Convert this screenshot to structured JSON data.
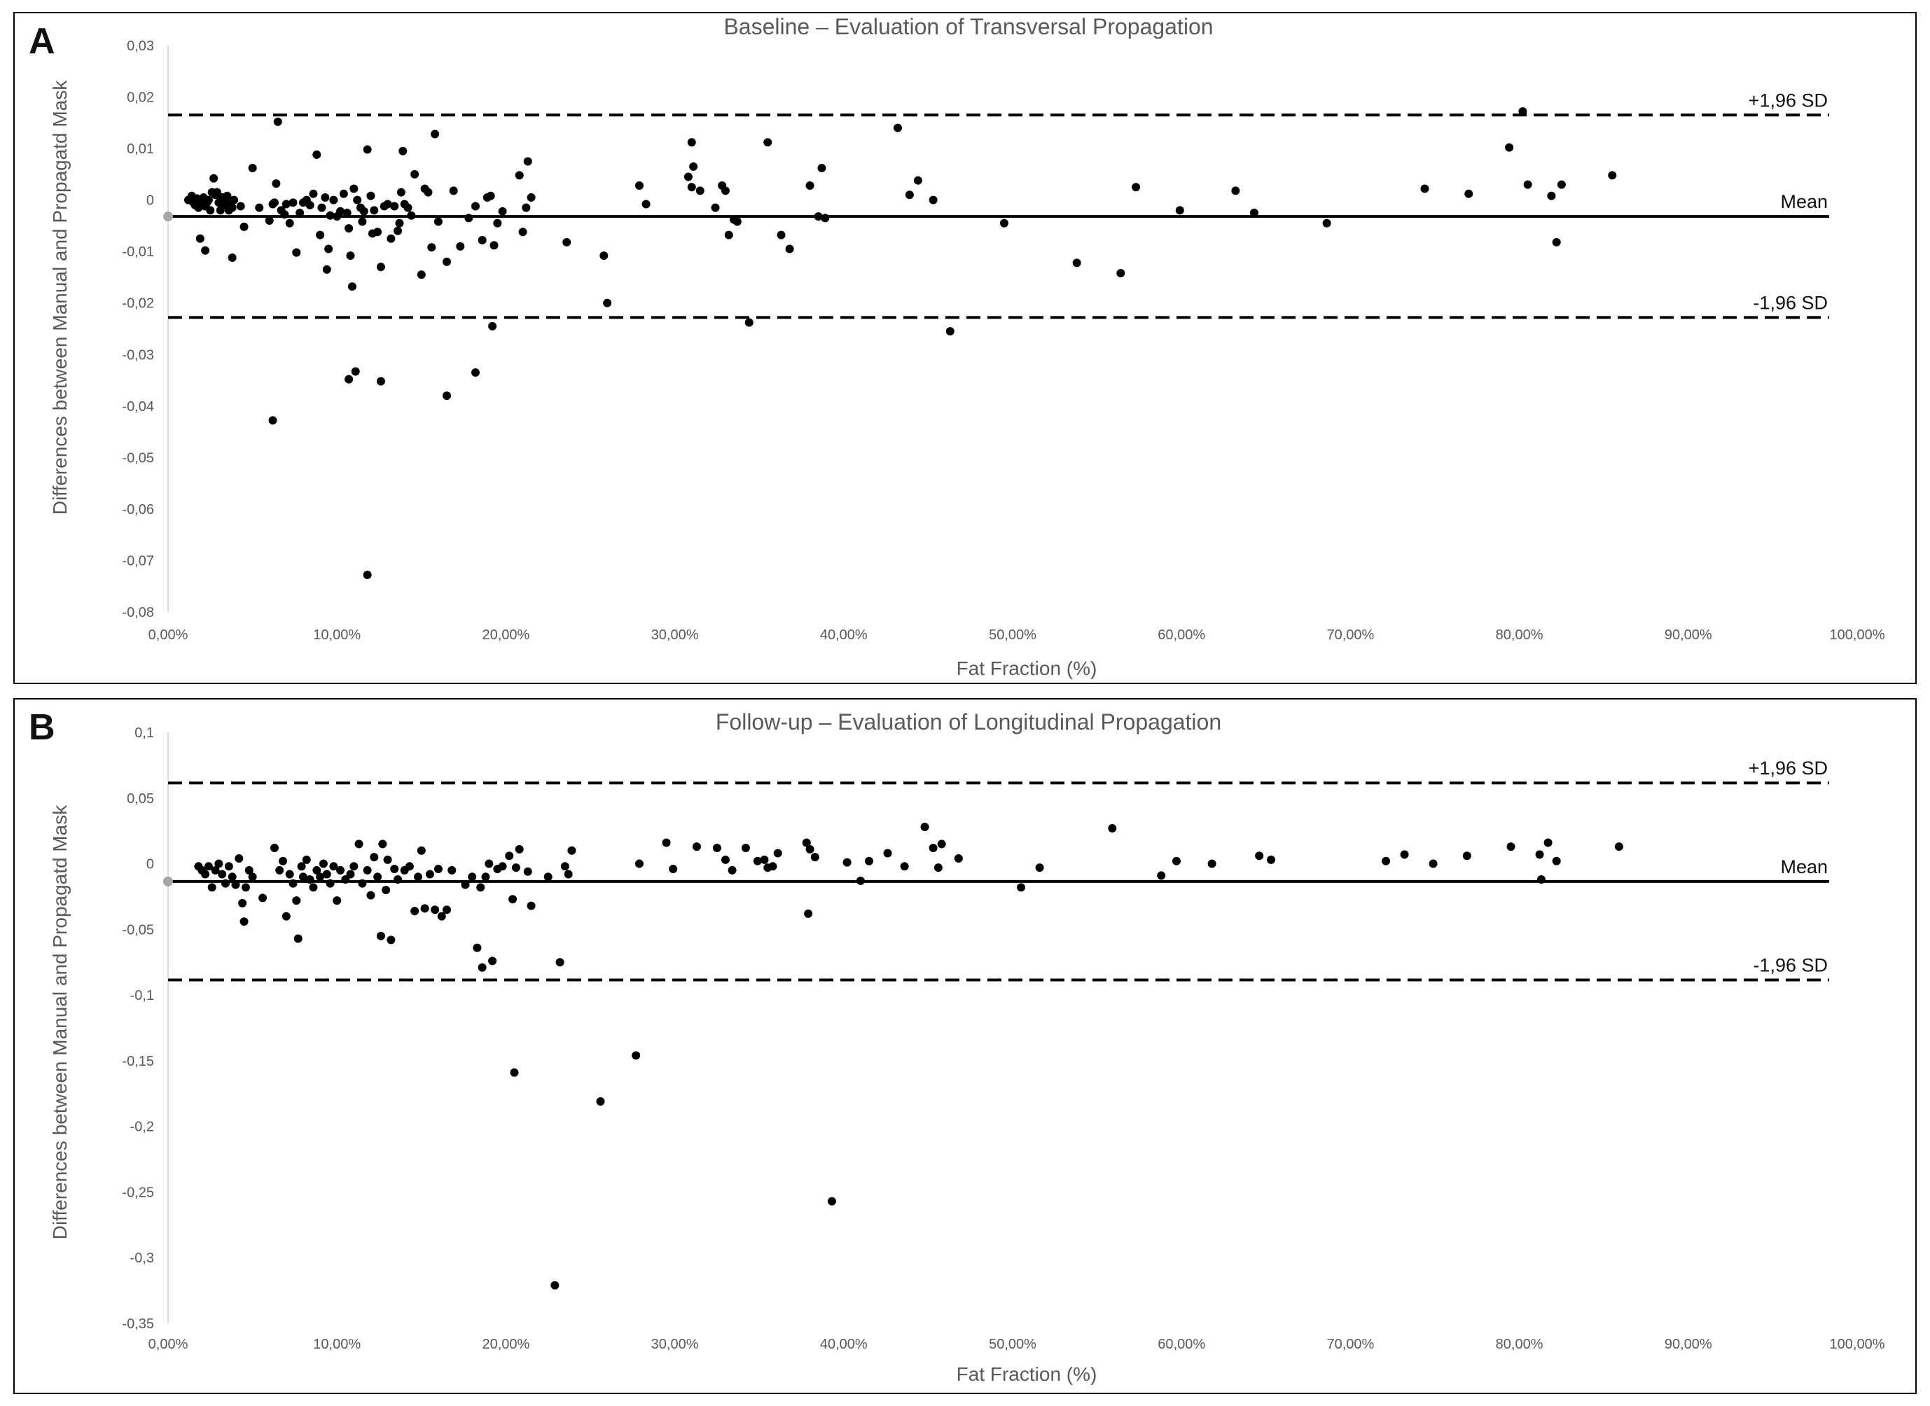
{
  "panels": [
    {
      "letter": "A"
    },
    {
      "letter": "B"
    }
  ],
  "chart_data": [
    {
      "type": "scatter",
      "title": "Baseline – Evaluation of Transversal Propagation",
      "xlabel": "Fat Fraction (%)",
      "ylabel": "Differences between Manual and Propagatd Mask",
      "xlim": [
        0,
        100
      ],
      "ylim": [
        -0.08,
        0.03
      ],
      "x_ticks": [
        "0,00%",
        "10,00%",
        "20,00%",
        "30,00%",
        "40,00%",
        "50,00%",
        "60,00%",
        "70,00%",
        "80,00%",
        "90,00%",
        "100,00%"
      ],
      "x_tick_values": [
        0,
        10,
        20,
        30,
        40,
        50,
        60,
        70,
        80,
        90,
        100
      ],
      "y_ticks": [
        "0,03",
        "0,02",
        "0,01",
        "0",
        "-0,01",
        "-0,02",
        "-0,03",
        "-0,04",
        "-0,05",
        "-0,06",
        "-0,07",
        "-0,08"
      ],
      "y_tick_values": [
        0.03,
        0.02,
        0.01,
        0,
        -0.01,
        -0.02,
        -0.03,
        -0.04,
        -0.05,
        -0.06,
        -0.07,
        -0.08
      ],
      "grid": false,
      "mean": -0.0032,
      "upper_loa": 0.0165,
      "lower_loa": -0.0228,
      "mean_label": "Mean",
      "upper_label": "+1,96 SD",
      "lower_label": "-1,96 SD",
      "mean_marker_color": "#a6a6a6",
      "point_color": "#000000",
      "points": [
        [
          1.2,
          0.0
        ],
        [
          1.4,
          0.0008
        ],
        [
          1.5,
          -0.0005
        ],
        [
          1.6,
          -0.001
        ],
        [
          1.7,
          0.0003
        ],
        [
          1.8,
          -0.0015
        ],
        [
          1.9,
          0.0
        ],
        [
          2.0,
          -0.0008
        ],
        [
          2.1,
          0.0005
        ],
        [
          2.2,
          -0.0012
        ],
        [
          2.3,
          -0.0005
        ],
        [
          2.4,
          0.0
        ],
        [
          2.5,
          -0.002
        ],
        [
          2.6,
          0.0015
        ],
        [
          2.7,
          0.0042
        ],
        [
          2.8,
          0.001
        ],
        [
          2.9,
          0.0015
        ],
        [
          3.0,
          -0.0005
        ],
        [
          3.1,
          -0.002
        ],
        [
          3.2,
          0.0005
        ],
        [
          3.3,
          -0.001
        ],
        [
          3.4,
          0.0
        ],
        [
          3.5,
          0.0008
        ],
        [
          3.6,
          -0.002
        ],
        [
          3.7,
          -0.001
        ],
        [
          3.8,
          -0.0015
        ],
        [
          3.9,
          0.0
        ],
        [
          1.9,
          -0.0075
        ],
        [
          2.2,
          -0.0098
        ],
        [
          3.8,
          -0.0112
        ],
        [
          4.3,
          -0.0012
        ],
        [
          4.5,
          -0.0052
        ],
        [
          5.0,
          0.0062
        ],
        [
          5.4,
          -0.0015
        ],
        [
          6.0,
          -0.004
        ],
        [
          6.2,
          -0.0008
        ],
        [
          6.3,
          -0.0005
        ],
        [
          6.4,
          0.0032
        ],
        [
          6.5,
          0.0152
        ],
        [
          6.7,
          -0.002
        ],
        [
          6.9,
          -0.0028
        ],
        [
          7.0,
          -0.0008
        ],
        [
          7.2,
          -0.0045
        ],
        [
          7.4,
          -0.0005
        ],
        [
          7.6,
          -0.0102
        ],
        [
          7.8,
          -0.0025
        ],
        [
          8.0,
          -0.0005
        ],
        [
          8.2,
          0.0
        ],
        [
          8.4,
          -0.001
        ],
        [
          8.6,
          0.0012
        ],
        [
          8.8,
          0.0088
        ],
        [
          9.0,
          -0.0068
        ],
        [
          9.1,
          -0.0015
        ],
        [
          9.3,
          0.0005
        ],
        [
          9.4,
          -0.0135
        ],
        [
          9.5,
          -0.0095
        ],
        [
          9.6,
          -0.003
        ],
        [
          9.8,
          0.0
        ],
        [
          10.0,
          -0.0032
        ],
        [
          10.2,
          -0.0022
        ],
        [
          10.4,
          0.0012
        ],
        [
          10.6,
          -0.0025
        ],
        [
          10.7,
          -0.0055
        ],
        [
          10.8,
          -0.0108
        ],
        [
          10.9,
          -0.0168
        ],
        [
          11.0,
          0.0022
        ],
        [
          11.2,
          0.0
        ],
        [
          11.4,
          -0.0015
        ],
        [
          11.5,
          -0.0042
        ],
        [
          11.6,
          -0.0022
        ],
        [
          11.8,
          0.0098
        ],
        [
          12.0,
          0.0008
        ],
        [
          12.1,
          -0.0065
        ],
        [
          12.2,
          -0.002
        ],
        [
          12.4,
          -0.0062
        ],
        [
          12.6,
          -0.013
        ],
        [
          12.8,
          -0.0012
        ],
        [
          13.0,
          -0.0008
        ],
        [
          13.2,
          -0.0075
        ],
        [
          13.4,
          -0.0012
        ],
        [
          13.6,
          -0.006
        ],
        [
          13.7,
          -0.0045
        ],
        [
          13.8,
          0.0015
        ],
        [
          13.9,
          0.0095
        ],
        [
          14.0,
          -0.0008
        ],
        [
          14.2,
          -0.0015
        ],
        [
          14.4,
          -0.003
        ],
        [
          14.6,
          0.005
        ],
        [
          15.0,
          -0.0145
        ],
        [
          15.2,
          0.0022
        ],
        [
          15.4,
          0.0015
        ],
        [
          15.6,
          -0.0092
        ],
        [
          15.8,
          0.0128
        ],
        [
          16.0,
          -0.0042
        ],
        [
          16.5,
          -0.012
        ],
        [
          16.9,
          0.0018
        ],
        [
          17.3,
          -0.009
        ],
        [
          17.8,
          -0.0035
        ],
        [
          18.2,
          -0.0012
        ],
        [
          18.6,
          -0.0078
        ],
        [
          18.9,
          0.0005
        ],
        [
          19.1,
          0.0008
        ],
        [
          19.3,
          -0.0088
        ],
        [
          19.5,
          -0.0045
        ],
        [
          19.8,
          -0.0022
        ],
        [
          20.8,
          0.0048
        ],
        [
          21.0,
          -0.0062
        ],
        [
          21.2,
          -0.0015
        ],
        [
          21.3,
          0.0075
        ],
        [
          21.5,
          0.0005
        ],
        [
          6.2,
          -0.0428
        ],
        [
          10.7,
          -0.0348
        ],
        [
          11.1,
          -0.0333
        ],
        [
          12.6,
          -0.0352
        ],
        [
          16.5,
          -0.038
        ],
        [
          18.2,
          -0.0335
        ],
        [
          11.8,
          -0.0728
        ],
        [
          19.2,
          -0.0245
        ],
        [
          23.6,
          -0.0082
        ],
        [
          25.8,
          -0.0108
        ],
        [
          26.0,
          -0.02
        ],
        [
          27.9,
          0.0028
        ],
        [
          28.3,
          -0.0008
        ],
        [
          30.8,
          0.0045
        ],
        [
          31.0,
          0.0112
        ],
        [
          31.1,
          0.0065
        ],
        [
          31.0,
          0.0025
        ],
        [
          31.5,
          0.0018
        ],
        [
          32.4,
          -0.0015
        ],
        [
          32.8,
          0.0028
        ],
        [
          33.0,
          0.0018
        ],
        [
          33.2,
          -0.0068
        ],
        [
          33.5,
          -0.0038
        ],
        [
          33.7,
          -0.0042
        ],
        [
          34.4,
          -0.0238
        ],
        [
          35.5,
          0.0112
        ],
        [
          36.3,
          -0.0068
        ],
        [
          36.8,
          -0.0095
        ],
        [
          38.0,
          0.0028
        ],
        [
          38.5,
          -0.0032
        ],
        [
          38.7,
          0.0062
        ],
        [
          38.9,
          -0.0035
        ],
        [
          43.2,
          0.014
        ],
        [
          43.9,
          0.001
        ],
        [
          44.4,
          0.0038
        ],
        [
          45.3,
          0.0
        ],
        [
          46.3,
          -0.0255
        ],
        [
          49.5,
          -0.0045
        ],
        [
          53.8,
          -0.0122
        ],
        [
          56.4,
          -0.0142
        ],
        [
          57.3,
          0.0025
        ],
        [
          59.9,
          -0.002
        ],
        [
          63.2,
          0.0018
        ],
        [
          64.3,
          -0.0025
        ],
        [
          68.6,
          -0.0045
        ],
        [
          74.4,
          0.0022
        ],
        [
          77.0,
          0.0012
        ],
        [
          79.4,
          0.0102
        ],
        [
          80.2,
          0.0172
        ],
        [
          80.5,
          0.003
        ],
        [
          81.9,
          0.0008
        ],
        [
          82.2,
          -0.0082
        ],
        [
          82.5,
          0.003
        ],
        [
          85.5,
          0.0048
        ]
      ]
    },
    {
      "type": "scatter",
      "title": "Follow-up – Evaluation of Longitudinal Propagation",
      "xlabel": "Fat Fraction (%)",
      "ylabel": "Differences between Manual and Propagatd Mask",
      "xlim": [
        0,
        100
      ],
      "ylim": [
        -0.35,
        0.1
      ],
      "x_ticks": [
        "0,00%",
        "10,00%",
        "20,00%",
        "30,00%",
        "40,00%",
        "50,00%",
        "60,00%",
        "70,00%",
        "80,00%",
        "90,00%",
        "100,00%"
      ],
      "x_tick_values": [
        0,
        10,
        20,
        30,
        40,
        50,
        60,
        70,
        80,
        90,
        100
      ],
      "y_ticks": [
        "0,1",
        "0,05",
        "0",
        "-0,05",
        "-0,1",
        "-0,15",
        "-0,2",
        "-0,25",
        "-0,3",
        "-0,35"
      ],
      "y_tick_values": [
        0.1,
        0.05,
        0,
        -0.05,
        -0.1,
        -0.15,
        -0.2,
        -0.25,
        -0.3,
        -0.35
      ],
      "grid": false,
      "mean": -0.0135,
      "upper_loa": 0.0615,
      "lower_loa": -0.0885,
      "mean_label": "Mean",
      "upper_label": "+1,96 SD",
      "lower_label": "-1,96 SD",
      "mean_marker_color": "#a6a6a6",
      "point_color": "#000000",
      "points": [
        [
          1.8,
          -0.002
        ],
        [
          2.0,
          -0.005
        ],
        [
          2.2,
          -0.008
        ],
        [
          2.4,
          -0.002
        ],
        [
          2.6,
          -0.018
        ],
        [
          2.8,
          -0.005
        ],
        [
          3.0,
          0.0
        ],
        [
          3.2,
          -0.008
        ],
        [
          3.4,
          -0.015
        ],
        [
          3.6,
          -0.002
        ],
        [
          3.8,
          -0.01
        ],
        [
          4.0,
          -0.016
        ],
        [
          4.2,
          0.004
        ],
        [
          4.4,
          -0.03
        ],
        [
          4.5,
          -0.044
        ],
        [
          4.6,
          -0.018
        ],
        [
          4.8,
          -0.005
        ],
        [
          5.0,
          -0.01
        ],
        [
          5.6,
          -0.026
        ],
        [
          6.3,
          0.012
        ],
        [
          6.6,
          -0.005
        ],
        [
          6.8,
          0.002
        ],
        [
          7.0,
          -0.04
        ],
        [
          7.2,
          -0.008
        ],
        [
          7.4,
          -0.015
        ],
        [
          7.6,
          -0.028
        ],
        [
          7.7,
          -0.057
        ],
        [
          7.9,
          -0.002
        ],
        [
          8.0,
          -0.01
        ],
        [
          8.2,
          0.003
        ],
        [
          8.4,
          -0.012
        ],
        [
          8.6,
          -0.018
        ],
        [
          8.8,
          -0.005
        ],
        [
          9.0,
          -0.01
        ],
        [
          9.2,
          0.0
        ],
        [
          9.4,
          -0.008
        ],
        [
          9.6,
          -0.015
        ],
        [
          9.8,
          -0.002
        ],
        [
          10.0,
          -0.028
        ],
        [
          10.2,
          -0.005
        ],
        [
          10.5,
          -0.012
        ],
        [
          10.8,
          -0.008
        ],
        [
          11.0,
          -0.002
        ],
        [
          11.3,
          0.015
        ],
        [
          11.5,
          -0.015
        ],
        [
          11.8,
          -0.005
        ],
        [
          12.0,
          -0.024
        ],
        [
          12.2,
          0.005
        ],
        [
          12.4,
          -0.01
        ],
        [
          12.6,
          -0.055
        ],
        [
          12.7,
          0.015
        ],
        [
          12.9,
          -0.02
        ],
        [
          13.0,
          0.003
        ],
        [
          13.2,
          -0.058
        ],
        [
          13.4,
          -0.004
        ],
        [
          13.6,
          -0.012
        ],
        [
          14.0,
          -0.005
        ],
        [
          14.3,
          -0.002
        ],
        [
          14.6,
          -0.036
        ],
        [
          14.8,
          -0.01
        ],
        [
          15.0,
          0.01
        ],
        [
          15.2,
          -0.034
        ],
        [
          15.5,
          -0.008
        ],
        [
          15.8,
          -0.035
        ],
        [
          16.0,
          -0.004
        ],
        [
          16.2,
          -0.04
        ],
        [
          16.5,
          -0.035
        ],
        [
          16.8,
          -0.005
        ],
        [
          17.6,
          -0.016
        ],
        [
          18.0,
          -0.01
        ],
        [
          18.3,
          -0.064
        ],
        [
          18.5,
          -0.018
        ],
        [
          18.6,
          -0.079
        ],
        [
          18.8,
          -0.01
        ],
        [
          19.0,
          0.0
        ],
        [
          19.2,
          -0.074
        ],
        [
          19.5,
          -0.004
        ],
        [
          19.8,
          -0.002
        ],
        [
          20.2,
          0.006
        ],
        [
          20.4,
          -0.027
        ],
        [
          20.6,
          -0.003
        ],
        [
          20.8,
          0.011
        ],
        [
          21.5,
          -0.032
        ],
        [
          21.3,
          -0.006
        ],
        [
          22.5,
          -0.01
        ],
        [
          23.2,
          -0.075
        ],
        [
          23.5,
          -0.002
        ],
        [
          23.7,
          -0.008
        ],
        [
          23.9,
          0.01
        ],
        [
          20.5,
          -0.159
        ],
        [
          22.9,
          -0.321
        ],
        [
          25.6,
          -0.181
        ],
        [
          27.7,
          -0.146
        ],
        [
          27.9,
          0.0
        ],
        [
          29.5,
          0.016
        ],
        [
          29.9,
          -0.004
        ],
        [
          31.3,
          0.013
        ],
        [
          32.5,
          0.012
        ],
        [
          33.0,
          0.003
        ],
        [
          33.4,
          -0.005
        ],
        [
          34.2,
          0.012
        ],
        [
          34.9,
          0.002
        ],
        [
          35.3,
          0.003
        ],
        [
          35.5,
          -0.003
        ],
        [
          35.8,
          -0.002
        ],
        [
          36.1,
          0.008
        ],
        [
          37.8,
          0.016
        ],
        [
          37.9,
          -0.038
        ],
        [
          38.0,
          0.011
        ],
        [
          38.3,
          0.005
        ],
        [
          39.3,
          -0.257
        ],
        [
          40.2,
          0.001
        ],
        [
          41.0,
          -0.013
        ],
        [
          41.5,
          0.002
        ],
        [
          42.6,
          0.008
        ],
        [
          43.6,
          -0.002
        ],
        [
          44.8,
          0.028
        ],
        [
          45.3,
          0.012
        ],
        [
          45.6,
          -0.003
        ],
        [
          45.8,
          0.015
        ],
        [
          46.8,
          0.004
        ],
        [
          50.5,
          -0.018
        ],
        [
          51.6,
          -0.003
        ],
        [
          55.9,
          0.027
        ],
        [
          58.8,
          -0.009
        ],
        [
          59.7,
          0.002
        ],
        [
          61.8,
          0.0
        ],
        [
          64.6,
          0.006
        ],
        [
          65.3,
          0.003
        ],
        [
          72.1,
          0.002
        ],
        [
          73.2,
          0.007
        ],
        [
          74.9,
          0.0
        ],
        [
          76.9,
          0.006
        ],
        [
          79.5,
          0.013
        ],
        [
          81.2,
          0.007
        ],
        [
          81.3,
          -0.012
        ],
        [
          81.7,
          0.016
        ],
        [
          82.2,
          0.002
        ],
        [
          85.9,
          0.013
        ]
      ]
    }
  ]
}
